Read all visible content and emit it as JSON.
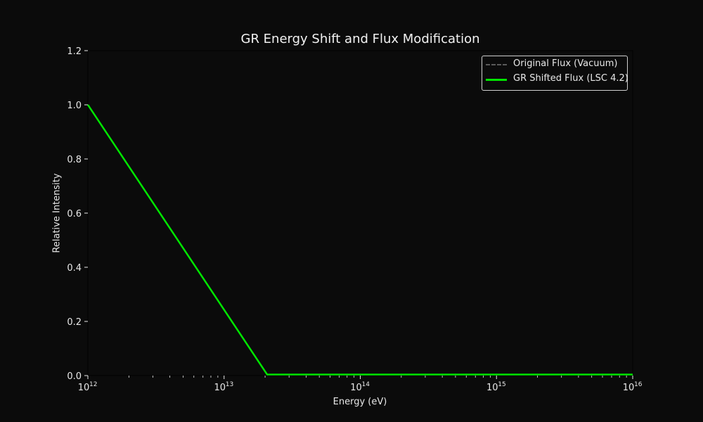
{
  "chart_data": {
    "type": "line",
    "title": "GR Energy Shift and Flux Modification",
    "xlabel": "Energy (eV)",
    "ylabel": "Relative Intensity",
    "xscale": "log",
    "xlim": [
      1000000000000.0,
      1e+16
    ],
    "ylim": [
      0.0,
      1.2
    ],
    "x_ticks": [
      "10^12",
      "10^13",
      "10^14",
      "10^15",
      "10^16"
    ],
    "y_ticks": [
      "0.0",
      "0.2",
      "0.4",
      "0.6",
      "0.8",
      "1.0",
      "1.2"
    ],
    "grid": false,
    "legend_position": "upper right",
    "series": [
      {
        "name": "Original Flux (Vacuum)",
        "style": "dashed",
        "color": "#555555",
        "x": [],
        "y": []
      },
      {
        "name": "GR Shifted Flux (LSC 4.2)",
        "style": "solid",
        "color": "#00e600",
        "x": [
          1000000000000.0,
          20700000000000.0,
          100000000000000.0,
          1000000000000000.0,
          1e+16
        ],
        "y": [
          1.0,
          0.004,
          0.004,
          0.004,
          0.004
        ]
      }
    ]
  },
  "labels": {
    "title": "GR Energy Shift and Flux Modification",
    "xlabel": "Energy (eV)",
    "ylabel": "Relative Intensity",
    "legend": [
      "Original Flux (Vacuum)",
      "GR Shifted Flux (LSC 4.2)"
    ],
    "yticks": [
      "0.0",
      "0.2",
      "0.4",
      "0.6",
      "0.8",
      "1.0",
      "1.2"
    ],
    "xticks": [
      {
        "base": "10",
        "exp": "12"
      },
      {
        "base": "10",
        "exp": "13"
      },
      {
        "base": "10",
        "exp": "14"
      },
      {
        "base": "10",
        "exp": "15"
      },
      {
        "base": "10",
        "exp": "16"
      }
    ]
  }
}
